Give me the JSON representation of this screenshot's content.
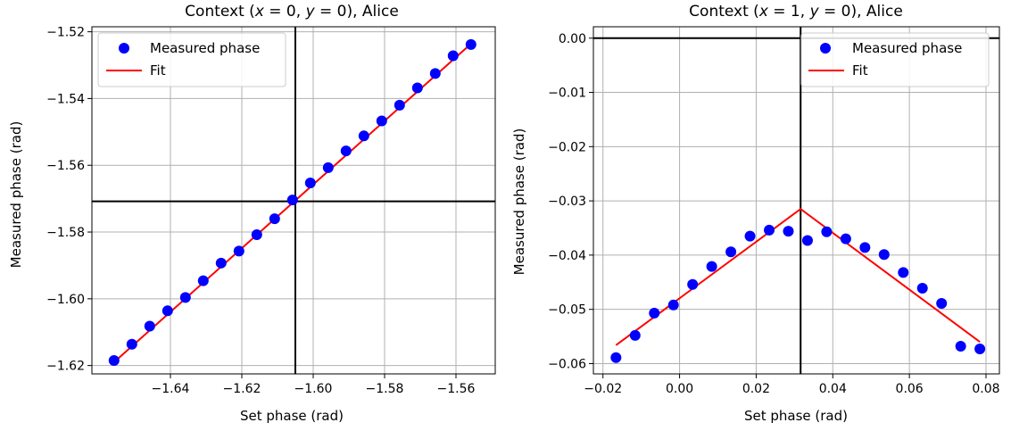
{
  "chart_data": [
    {
      "type": "scatter",
      "title": "Context (x = 0, y = 0), Alice",
      "title_parts": {
        "prefix": "Context (",
        "x": "x",
        "xeq": " = 0, ",
        "y": "y",
        "yeq": " = 0), Alice"
      },
      "xlabel": "Set phase (rad)",
      "ylabel": "Measured phase (rad)",
      "xlim": [
        -1.662,
        -1.549
      ],
      "ylim": [
        -1.6225,
        -1.5185
      ],
      "xticks": [
        -1.64,
        -1.62,
        -1.6,
        -1.58,
        -1.56
      ],
      "xtick_labels": [
        "−1.64",
        "−1.62",
        "−1.60",
        "−1.58",
        "−1.56"
      ],
      "yticks": [
        -1.62,
        -1.6,
        -1.58,
        -1.56,
        -1.54,
        -1.52
      ],
      "ytick_labels": [
        "−1.62",
        "−1.60",
        "−1.58",
        "−1.56",
        "−1.54",
        "−1.52"
      ],
      "grid": true,
      "legend_position": "top-left",
      "vline": -1.605,
      "hline": -1.5708,
      "series": [
        {
          "name": "Measured phase",
          "kind": "scatter",
          "color": "#0000ff",
          "x": [
            -1.6558,
            -1.6508,
            -1.6458,
            -1.6408,
            -1.6358,
            -1.6308,
            -1.6258,
            -1.6208,
            -1.6158,
            -1.6108,
            -1.6058,
            -1.6008,
            -1.5958,
            -1.5908,
            -1.5858,
            -1.5808,
            -1.5758,
            -1.5708,
            -1.5658,
            -1.5608,
            -1.5558
          ],
          "y": [
            -1.6185,
            -1.6136,
            -1.6082,
            -1.6036,
            -1.5996,
            -1.5946,
            -1.5893,
            -1.5857,
            -1.5808,
            -1.576,
            -1.5704,
            -1.5653,
            -1.5607,
            -1.5557,
            -1.5512,
            -1.5467,
            -1.542,
            -1.5368,
            -1.5325,
            -1.5272,
            -1.5238
          ]
        },
        {
          "name": "Fit",
          "kind": "line",
          "color": "#ff0000",
          "x": [
            -1.6558,
            -1.5558
          ],
          "y": [
            -1.619,
            -1.5236
          ]
        }
      ]
    },
    {
      "type": "scatter",
      "title": "Context (x = 1, y = 0), Alice",
      "title_parts": {
        "prefix": "Context (",
        "x": "x",
        "xeq": " = 1, ",
        "y": "y",
        "yeq": " = 0), Alice"
      },
      "xlabel": "Set phase (rad)",
      "ylabel": "Measured phase (rad)",
      "xlim": [
        -0.0225,
        0.0835
      ],
      "ylim": [
        -0.0619,
        0.0021
      ],
      "xticks": [
        -0.02,
        0.0,
        0.02,
        0.04,
        0.06,
        0.08
      ],
      "xtick_labels": [
        "−0.02",
        "0.00",
        "0.02",
        "0.04",
        "0.06",
        "0.08"
      ],
      "yticks": [
        0.0,
        -0.01,
        -0.02,
        -0.03,
        -0.04,
        -0.05,
        -0.06
      ],
      "ytick_labels": [
        "0.00",
        "−0.01",
        "−0.02",
        "−0.03",
        "−0.04",
        "−0.05",
        "−0.06"
      ],
      "grid": true,
      "legend_position": "top-right",
      "vline": 0.0316,
      "hline": 0.0,
      "series": [
        {
          "name": "Measured phase",
          "kind": "scatter",
          "color": "#0000ff",
          "x": [
            -0.0166,
            -0.0116,
            -0.0066,
            -0.0016,
            0.0034,
            0.0084,
            0.0134,
            0.0184,
            0.0234,
            0.0284,
            0.0334,
            0.0384,
            0.0434,
            0.0484,
            0.0534,
            0.0584,
            0.0634,
            0.0684,
            0.0734,
            0.0784
          ],
          "y": [
            -0.0589,
            -0.0548,
            -0.0507,
            -0.0492,
            -0.0454,
            -0.0421,
            -0.0394,
            -0.0365,
            -0.0354,
            -0.0356,
            -0.0373,
            -0.0357,
            -0.037,
            -0.0386,
            -0.0399,
            -0.0432,
            -0.0461,
            -0.0489,
            -0.0568,
            -0.0573
          ]
        },
        {
          "name": "Fit",
          "kind": "line",
          "color": "#ff0000",
          "x": [
            -0.0166,
            0.0316,
            0.0784
          ],
          "y": [
            -0.0566,
            -0.0315,
            -0.056
          ]
        }
      ]
    }
  ]
}
